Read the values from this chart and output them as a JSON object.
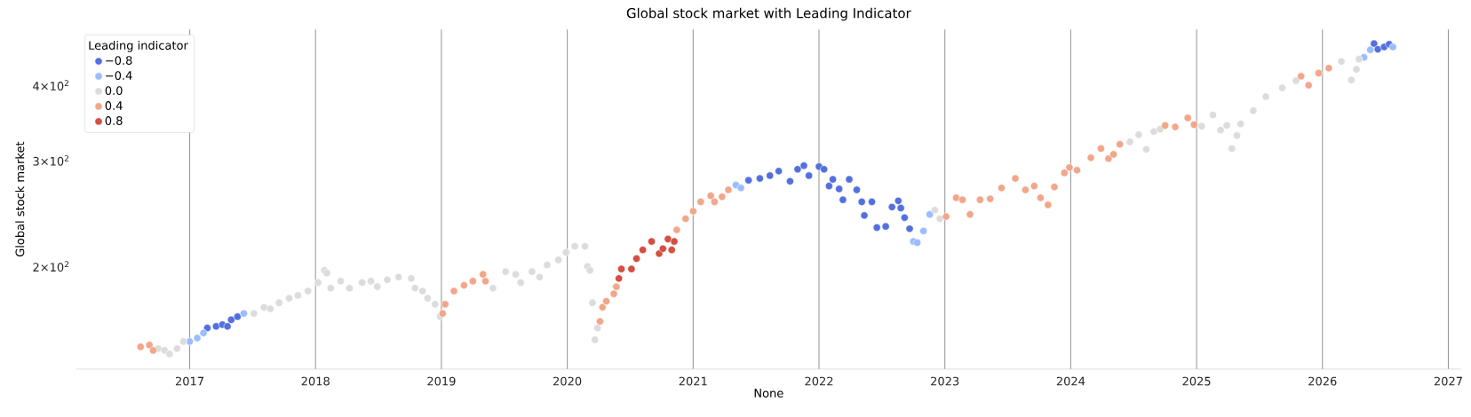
{
  "chart_data": {
    "type": "scatter",
    "title": "Global stock market with Leading Indicator",
    "xlabel": "None",
    "ylabel": "Global stock market",
    "legend_title": "Leading indicator",
    "log": "y",
    "grid": "x",
    "legend": "top left",
    "xlim": [
      2016.1,
      2027.1
    ],
    "xticks": [
      2017,
      2018,
      2019,
      2020,
      2021,
      2022,
      2023,
      2024,
      2025,
      2026,
      2027
    ],
    "ylim": [
      135,
      495
    ],
    "yticks": [
      {
        "value": 200,
        "label": "2×10$^{2}$"
      },
      {
        "value": 300,
        "label": "3×10$^{2}$"
      },
      {
        "value": 400,
        "label": "4×10$^{2}$"
      }
    ],
    "series": [
      {
        "name": "−0.8",
        "color": "#5470de",
        "x": [
          2017.14,
          2017.21,
          2017.26,
          2017.3,
          2017.33,
          2017.38,
          2021.44,
          2021.53,
          2021.61,
          2021.68,
          2021.77,
          2021.83,
          2021.88,
          2021.92,
          2022.0,
          2022.04,
          2022.08,
          2022.11,
          2022.16,
          2022.19,
          2022.24,
          2022.3,
          2022.34,
          2022.36,
          2022.42,
          2022.46,
          2022.53,
          2022.58,
          2022.63,
          2022.65,
          2022.68,
          2022.72,
          2026.41,
          2026.44,
          2026.49,
          2026.53
        ],
        "values": [
          158,
          159,
          160,
          159,
          163,
          165,
          278,
          280,
          283,
          288,
          277,
          290,
          294,
          283,
          293,
          290,
          272,
          279,
          269,
          258,
          279,
          268,
          256,
          243,
          256,
          232,
          233,
          251,
          257,
          250,
          241,
          231,
          469,
          459,
          463,
          468
        ]
      },
      {
        "name": "−0.4",
        "color": "#9bbcff",
        "x": [
          2017.0,
          2017.06,
          2017.11,
          2017.43,
          2021.34,
          2021.38,
          2022.75,
          2022.78,
          2022.83,
          2022.88,
          2026.33,
          2026.38,
          2026.56
        ],
        "values": [
          150,
          152,
          155,
          167,
          273,
          270,
          220,
          219,
          229,
          244,
          445,
          458,
          463
        ]
      },
      {
        "name": "0.0",
        "color": "#dcdcdc",
        "x": [
          2016.75,
          2016.8,
          2016.84,
          2016.9,
          2016.95,
          2017.51,
          2017.59,
          2017.64,
          2017.71,
          2017.79,
          2017.86,
          2017.94,
          2018.02,
          2018.07,
          2018.09,
          2018.12,
          2018.2,
          2018.27,
          2018.37,
          2018.44,
          2018.49,
          2018.57,
          2018.66,
          2018.76,
          2018.79,
          2018.85,
          2018.89,
          2018.95,
          2018.99,
          2019.41,
          2019.51,
          2019.59,
          2019.63,
          2019.72,
          2019.78,
          2019.84,
          2019.93,
          2019.99,
          2020.06,
          2020.14,
          2020.16,
          2020.18,
          2020.2,
          2020.22,
          2020.24,
          2022.92,
          2022.96,
          2024.47,
          2024.54,
          2024.6,
          2024.66,
          2024.71,
          2025.04,
          2025.13,
          2025.19,
          2025.24,
          2025.28,
          2025.32,
          2025.35,
          2025.45,
          2025.55,
          2025.68,
          2025.79,
          2026.15,
          2026.23,
          2026.27,
          2026.29
        ],
        "values": [
          146,
          145,
          143,
          146,
          150,
          167,
          171,
          170,
          174,
          177,
          179,
          182,
          188,
          197,
          195,
          184,
          189,
          184,
          188,
          189,
          185,
          190,
          192,
          191,
          184,
          182,
          177,
          173,
          165,
          184,
          196,
          194,
          188,
          196,
          192,
          201,
          205,
          211,
          216,
          216,
          200,
          197,
          174,
          151,
          158,
          248,
          240,
          322,
          331,
          313,
          335,
          338,
          342,
          357,
          337,
          343,
          314,
          330,
          345,
          363,
          383,
          396,
          407,
          438,
          408,
          425,
          442
        ]
      },
      {
        "name": "0.4",
        "color": "#f2a68a",
        "x": [
          2016.61,
          2016.68,
          2016.71,
          2019.01,
          2019.03,
          2019.1,
          2019.18,
          2019.25,
          2019.33,
          2019.35,
          2020.26,
          2020.28,
          2020.31,
          2020.37,
          2020.39,
          2020.87,
          2020.94,
          2021.0,
          2021.06,
          2021.14,
          2021.17,
          2021.23,
          2021.28,
          2023.01,
          2023.09,
          2023.14,
          2023.2,
          2023.28,
          2023.36,
          2023.45,
          2023.56,
          2023.64,
          2023.71,
          2023.76,
          2023.82,
          2023.87,
          2023.95,
          2023.99,
          2024.05,
          2024.16,
          2024.24,
          2024.3,
          2024.34,
          2024.39,
          2024.75,
          2024.83,
          2024.93,
          2024.98,
          2025.83,
          2025.89,
          2025.97,
          2026.05
        ],
        "values": [
          147,
          148,
          145,
          167,
          173,
          182,
          186,
          189,
          194,
          189,
          162,
          171,
          175,
          180,
          185,
          230,
          240,
          247,
          256,
          262,
          256,
          261,
          268,
          242,
          260,
          258,
          244,
          258,
          259,
          270,
          280,
          268,
          272,
          260,
          253,
          271,
          286,
          292,
          289,
          303,
          314,
          302,
          307,
          319,
          343,
          341,
          353,
          344,
          414,
          400,
          419,
          427
        ]
      },
      {
        "name": "0.8",
        "color": "#d44e41",
        "x": [
          2020.41,
          2020.43,
          2020.51,
          2020.55,
          2020.6,
          2020.67,
          2020.73,
          2020.76,
          2020.8,
          2020.83,
          2020.85
        ],
        "values": [
          191,
          198,
          198,
          206,
          213,
          220,
          210,
          214,
          222,
          213,
          220
        ]
      }
    ]
  }
}
